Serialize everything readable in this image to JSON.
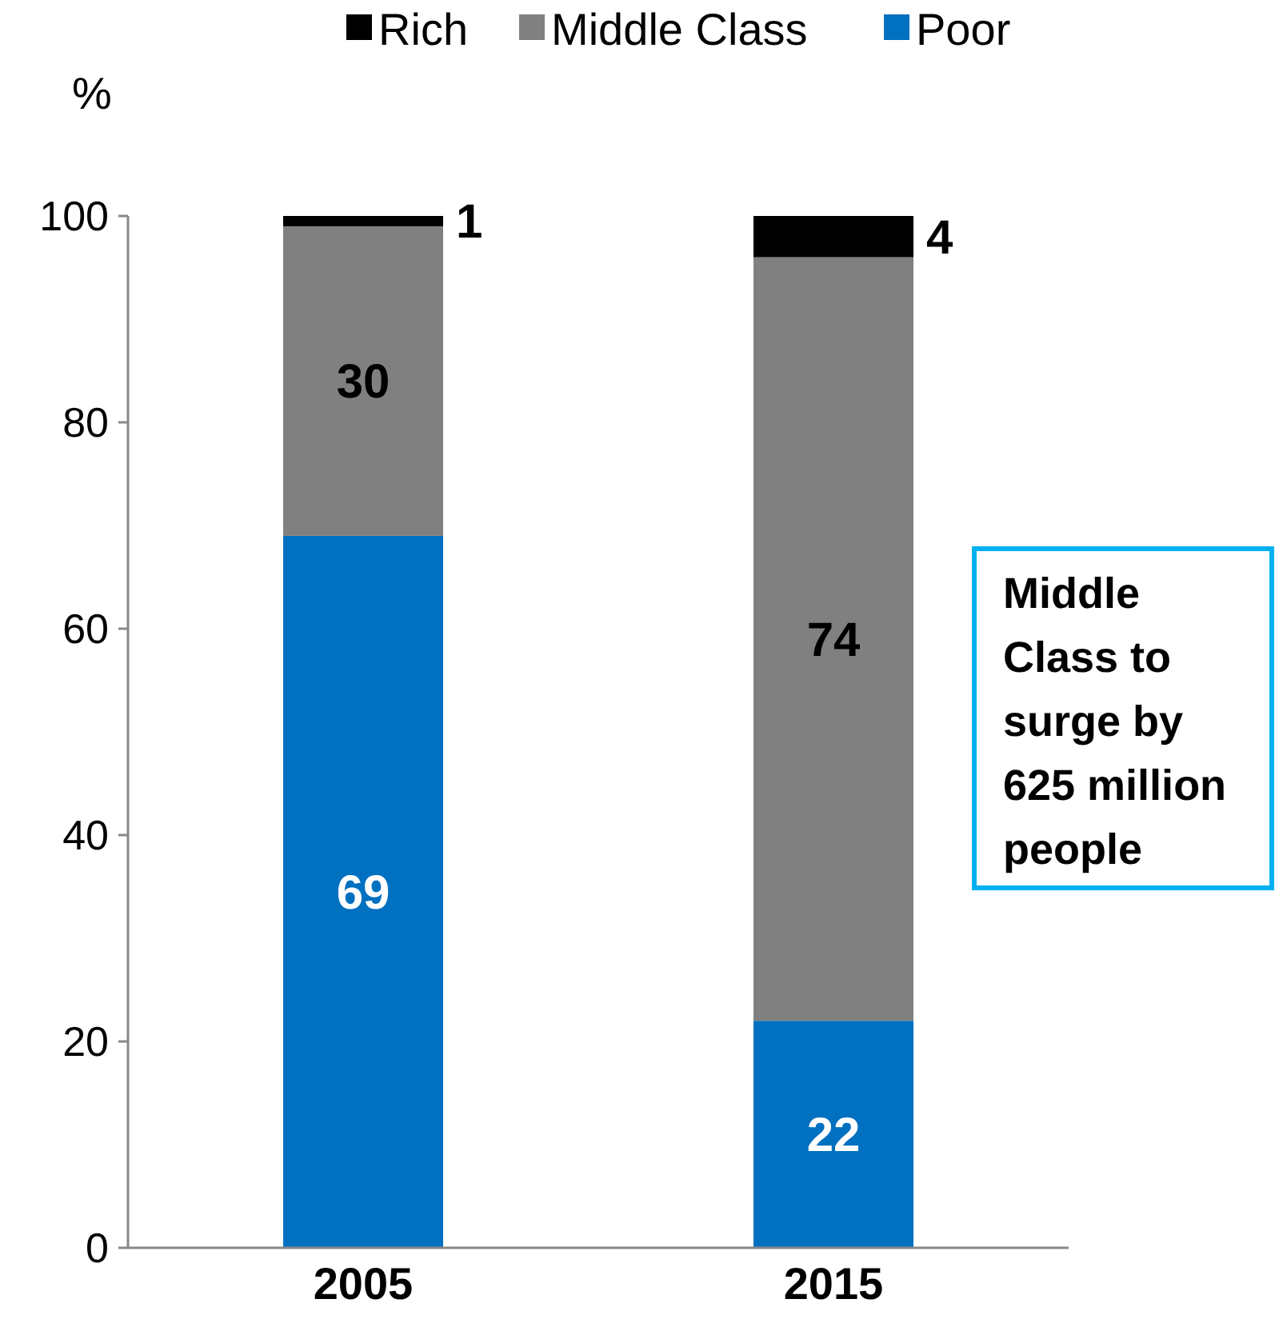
{
  "chart_data": {
    "type": "bar",
    "stacked": true,
    "categories": [
      "2005",
      "2015"
    ],
    "ylabel": "%",
    "ylim": [
      0,
      100
    ],
    "yticks": [
      0,
      20,
      40,
      60,
      80,
      100
    ],
    "grid": false,
    "legend": "top",
    "data_labels": true,
    "series": [
      {
        "name": "Poor",
        "color": "#0070c0",
        "values": [
          69,
          22
        ]
      },
      {
        "name": "Middle Class",
        "color": "#808080",
        "values": [
          30,
          74
        ]
      },
      {
        "name": "Rich",
        "color": "#000000",
        "values": [
          1,
          4
        ]
      }
    ],
    "annotations": [
      "Middle Class to surge by 625 million people"
    ]
  }
}
